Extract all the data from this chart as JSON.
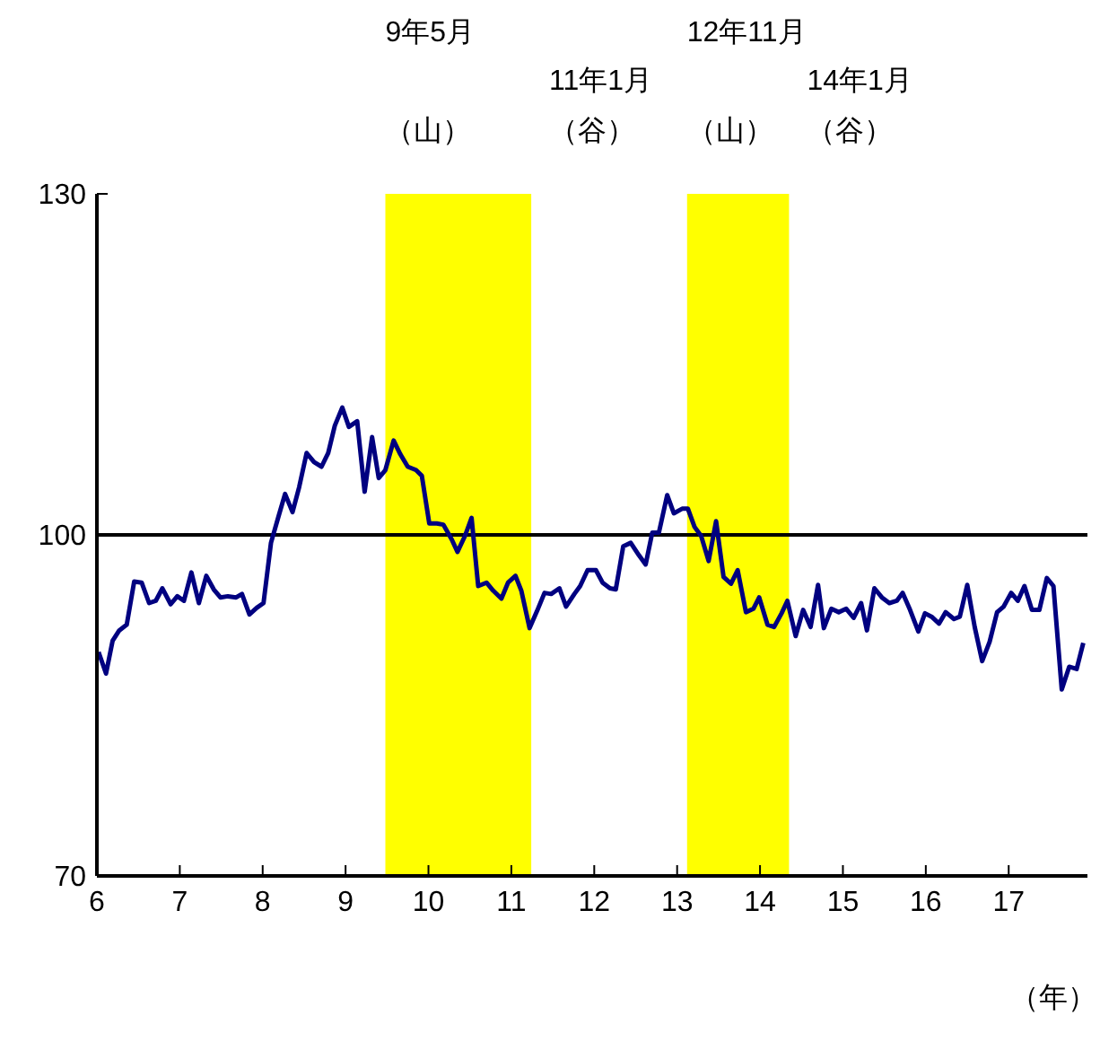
{
  "chart_data": {
    "type": "line",
    "xlabel": "（年）",
    "x": [
      6.02,
      6.11,
      6.19,
      6.27,
      6.36,
      6.45,
      6.54,
      6.63,
      6.71,
      6.79,
      6.89,
      6.97,
      7.05,
      7.14,
      7.23,
      7.32,
      7.41,
      7.49,
      7.58,
      7.68,
      7.75,
      7.84,
      7.93,
      8.01,
      8.1,
      8.19,
      8.27,
      8.36,
      8.44,
      8.53,
      8.62,
      8.71,
      8.79,
      8.87,
      8.96,
      9.04,
      9.14,
      9.23,
      9.32,
      9.4,
      9.48,
      9.58,
      9.66,
      9.75,
      9.85,
      9.92,
      10.01,
      10.1,
      10.18,
      10.28,
      10.35,
      10.44,
      10.52,
      10.6,
      10.7,
      10.78,
      10.88,
      10.96,
      11.05,
      11.12,
      11.22,
      11.31,
      11.4,
      11.48,
      11.58,
      11.66,
      11.76,
      11.83,
      11.92,
      12.02,
      12.1,
      12.19,
      12.26,
      12.35,
      12.44,
      12.54,
      12.62,
      12.7,
      12.78,
      12.88,
      12.96,
      13.06,
      13.13,
      13.21,
      13.29,
      13.38,
      13.47,
      13.56,
      13.65,
      13.73,
      13.83,
      13.92,
      13.99,
      14.09,
      14.17,
      14.26,
      14.33,
      14.43,
      14.52,
      14.61,
      14.7,
      14.77,
      14.86,
      14.95,
      15.04,
      15.13,
      15.22,
      15.29,
      15.38,
      15.47,
      15.56,
      15.65,
      15.72,
      15.81,
      15.91,
      15.99,
      16.07,
      16.16,
      16.24,
      16.34,
      16.41,
      16.5,
      16.59,
      16.68,
      16.77,
      16.86,
      16.94,
      17.03,
      17.11,
      17.19,
      17.28,
      17.37,
      17.46,
      17.54,
      17.64,
      17.73,
      17.82,
      17.9
    ],
    "series": [
      {
        "color": "#000080",
        "values": [
          89.7,
          87.8,
          90.7,
          91.6,
          92.1,
          95.9,
          95.8,
          94.0,
          94.2,
          95.3,
          93.9,
          94.6,
          94.2,
          96.7,
          94.0,
          96.4,
          95.2,
          94.5,
          94.6,
          94.5,
          94.8,
          93.0,
          93.6,
          94.0,
          99.3,
          101.6,
          103.6,
          102.0,
          104.2,
          107.2,
          106.4,
          106.0,
          107.2,
          109.6,
          111.2,
          109.5,
          110.0,
          103.8,
          108.6,
          105.0,
          105.7,
          108.3,
          107.1,
          106.0,
          105.7,
          105.2,
          101.0,
          101.0,
          100.9,
          99.6,
          98.5,
          99.9,
          101.5,
          95.5,
          95.8,
          95.1,
          94.4,
          95.8,
          96.4,
          95.1,
          91.8,
          93.3,
          94.9,
          94.8,
          95.3,
          93.7,
          94.8,
          95.5,
          96.9,
          96.9,
          95.8,
          95.3,
          95.2,
          99.0,
          99.3,
          98.2,
          97.4,
          100.2,
          100.2,
          103.5,
          101.9,
          102.3,
          102.3,
          100.7,
          99.9,
          97.7,
          101.2,
          96.3,
          95.7,
          96.9,
          93.2,
          93.5,
          94.5,
          92.1,
          91.9,
          93.1,
          94.2,
          91.1,
          93.4,
          91.9,
          95.6,
          91.8,
          93.5,
          93.2,
          93.5,
          92.7,
          94.0,
          91.6,
          95.3,
          94.5,
          94.0,
          94.2,
          94.9,
          93.4,
          91.5,
          93.1,
          92.8,
          92.2,
          93.2,
          92.6,
          92.8,
          95.6,
          91.9,
          88.9,
          90.6,
          93.2,
          93.7,
          94.9,
          94.2,
          95.5,
          93.4,
          93.4,
          96.2,
          95.5,
          86.4,
          88.4,
          88.2,
          90.5
        ]
      }
    ],
    "xlim": [
      6,
      17.95
    ],
    "xticks": [
      6,
      7,
      8,
      9,
      10,
      11,
      12,
      13,
      14,
      15,
      16,
      17
    ],
    "ylim": [
      70,
      130
    ],
    "yticks": [
      70,
      100,
      130
    ],
    "ref_lines": [
      {
        "axis": "y",
        "value": 100,
        "color": "#000000"
      }
    ],
    "bands": [
      {
        "axis": "x",
        "from": 9.48,
        "to": 11.24,
        "color": "#ffff00"
      },
      {
        "axis": "x",
        "from": 13.12,
        "to": 14.35,
        "color": "#ffff00"
      }
    ],
    "annotations": [
      "9年5月",
      "（山）",
      "11年1月",
      "（谷）",
      "12年11月",
      "（山）",
      "14年1月",
      "（谷）"
    ],
    "grid": false,
    "legend": false,
    "marker": "none",
    "line_style": "solid"
  }
}
